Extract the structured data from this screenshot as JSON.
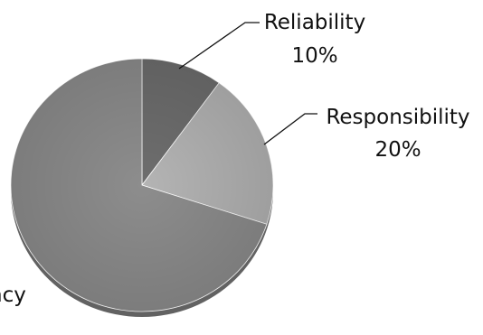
{
  "chart_data": {
    "type": "pie",
    "title": "",
    "slices": [
      {
        "label": "Reliability",
        "value": 10,
        "value_label": "10%",
        "color": "#6e6e6e"
      },
      {
        "label": "Responsibility",
        "value": 20,
        "value_label": "20%",
        "color": "#b4b4b4"
      },
      {
        "label": "ncy",
        "value": 70,
        "value_label": "",
        "color": "#8d8d8d"
      }
    ],
    "legend": "none",
    "style": "3d-shadowed, grayscale"
  }
}
